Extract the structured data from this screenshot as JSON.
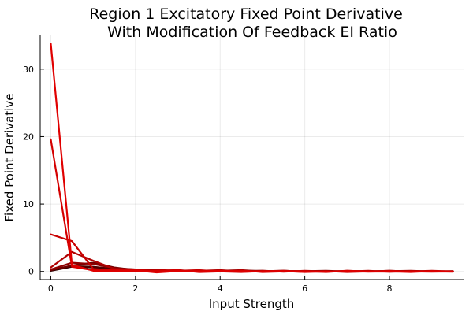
{
  "chart_data": {
    "type": "line",
    "title_line1": "Region 1 Excitatory Fixed Point Derivative",
    "title_line2": "With Modification Of Feedback EI Ratio",
    "xlabel": "Input Strength",
    "ylabel": "Fixed Point Derivative",
    "xlim": [
      -0.25,
      9.75
    ],
    "ylim": [
      -1.2,
      35
    ],
    "xticks": [
      0,
      2,
      4,
      6,
      8
    ],
    "yticks": [
      0,
      10,
      20,
      30
    ],
    "grid": true,
    "legend": "none",
    "x": [
      0,
      0.5,
      1,
      1.5,
      2,
      2.5,
      3,
      3.5,
      4,
      4.5,
      5,
      5.5,
      6,
      6.5,
      7,
      7.5,
      8,
      8.5,
      9,
      9.5
    ],
    "series": [
      {
        "color": "#e00000",
        "values": [
          33.8,
          1.0,
          0.1,
          0.0,
          0.15,
          -0.15,
          0.05,
          0.0,
          0.1,
          -0.05,
          0.0,
          0.05,
          -0.1,
          0.0,
          0.05,
          -0.05,
          0.0,
          -0.1,
          0.05,
          0.0
        ]
      },
      {
        "color": "#d40000",
        "values": [
          19.6,
          0.7,
          0.2,
          0.3,
          0.0,
          0.1,
          0.2,
          -0.1,
          0.0,
          0.15,
          -0.1,
          0.0,
          0.05,
          -0.1,
          0.1,
          0.0,
          -0.05,
          0.05,
          0.0,
          -0.05
        ]
      },
      {
        "color": "#c80000",
        "values": [
          5.5,
          4.5,
          0.4,
          0.1,
          0.3,
          0.0,
          0.1,
          0.2,
          0.0,
          -0.1,
          0.05,
          0.1,
          0.0,
          0.05,
          -0.1,
          0.0,
          0.1,
          0.0,
          -0.05,
          0.0
        ]
      },
      {
        "color": "#b00000",
        "values": [
          0.6,
          2.9,
          1.6,
          0.4,
          0.2,
          0.3,
          0.0,
          0.1,
          0.2,
          0.0,
          0.1,
          -0.05,
          0.1,
          0.0,
          0.0,
          0.1,
          -0.05,
          0.0,
          0.1,
          0.0
        ]
      },
      {
        "color": "#900000",
        "values": [
          0.3,
          1.3,
          1.1,
          0.5,
          0.3,
          0.1,
          0.2,
          0.0,
          0.1,
          0.2,
          0.0,
          0.1,
          0.0,
          -0.05,
          0.1,
          0.0,
          0.05,
          0.1,
          0.0,
          0.05
        ]
      },
      {
        "color": "#700000",
        "values": [
          0.2,
          0.9,
          1.3,
          0.6,
          0.2,
          0.2,
          0.1,
          0.1,
          0.0,
          0.1,
          0.1,
          0.0,
          0.05,
          0.1,
          0.0,
          0.05,
          0.0,
          0.0,
          0.05,
          0.0
        ]
      },
      {
        "color": "#500000",
        "values": [
          0.2,
          0.8,
          0.7,
          0.4,
          0.3,
          0.1,
          0.1,
          0.0,
          0.1,
          0.0,
          0.05,
          0.1,
          0.0,
          0.0,
          0.05,
          0.0,
          0.1,
          0.0,
          0.0,
          0.05
        ]
      },
      {
        "color": "#300000",
        "values": [
          0.1,
          0.7,
          0.6,
          0.3,
          0.2,
          0.1,
          0.0,
          0.1,
          0.05,
          0.0,
          0.0,
          0.05,
          0.0,
          0.05,
          0.0,
          0.0,
          0.0,
          0.05,
          0.0,
          0.0
        ]
      }
    ]
  }
}
